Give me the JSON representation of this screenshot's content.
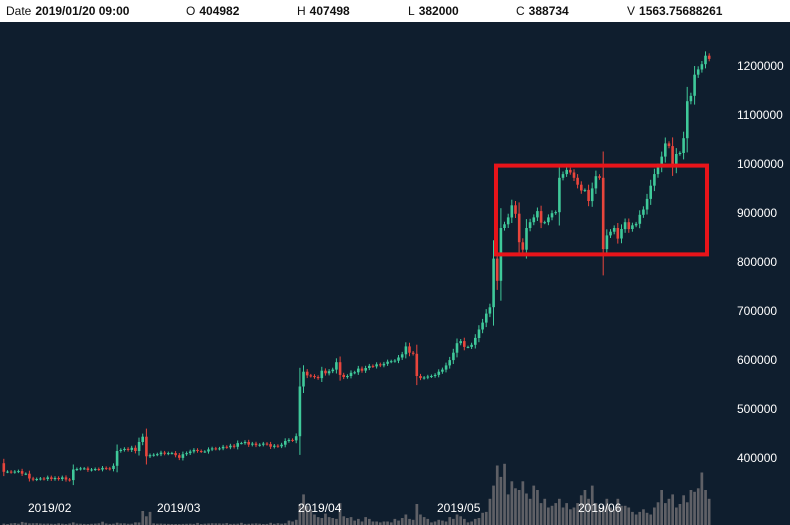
{
  "header": {
    "date_label": "Date",
    "date_value": "2019/01/20 09:00",
    "open_label": "O",
    "open_value": "404982",
    "high_label": "H",
    "high_value": "407498",
    "low_label": "L",
    "low_value": "382000",
    "close_label": "C",
    "close_value": "388734",
    "volume_label": "V",
    "volume_value": "1563.75688261"
  },
  "colors": {
    "background": "#0f1e2e",
    "up": "#3fc99a",
    "down": "#e8453c",
    "volume": "#5f6066",
    "highlight_box": "#e8141a"
  },
  "chart_data": {
    "type": "candlestick",
    "y_tick_labels": [
      "1200000",
      "1100000",
      "1000000",
      "900000",
      "800000",
      "700000",
      "600000",
      "500000",
      "400000"
    ],
    "ylim": [
      358000,
      1236000
    ],
    "x_tick_labels": [
      "2019/02",
      "2019/03",
      "2019/04",
      "2019/05",
      "2019/06"
    ],
    "highlight_range": [
      800000,
      968000
    ],
    "closes": [
      388734,
      389000,
      388000,
      389000,
      390000,
      385000,
      385000,
      376000,
      374000,
      375000,
      376000,
      375000,
      378000,
      375000,
      377000,
      375000,
      378000,
      374000,
      373000,
      393000,
      394000,
      395000,
      395000,
      392000,
      393000,
      394000,
      393000,
      396000,
      395000,
      394000,
      400000,
      428000,
      430000,
      432000,
      430000,
      434000,
      428000,
      445000,
      455000,
      418000,
      420000,
      421000,
      422000,
      425000,
      423000,
      424000,
      424000,
      420000,
      415000,
      422000,
      424000,
      427000,
      430000,
      428000,
      427000,
      427000,
      431000,
      433000,
      432000,
      433000,
      436000,
      435000,
      438000,
      436000,
      443000,
      443000,
      445000,
      440000,
      442000,
      439000,
      440000,
      442000,
      441000,
      436000,
      438000,
      437000,
      440000,
      447000,
      449000,
      448000,
      456000,
      550000,
      578000,
      571000,
      570000,
      568000,
      566000,
      580000,
      575000,
      579000,
      582000,
      596000,
      572000,
      568000,
      570000,
      576000,
      577000,
      584000,
      580000,
      585000,
      589000,
      588000,
      592000,
      590000,
      593000,
      597000,
      598000,
      599000,
      605000,
      611000,
      626000,
      614000,
      612000,
      570000,
      566000,
      567000,
      569000,
      570000,
      572000,
      578000,
      582000,
      590000,
      600000,
      614000,
      632000,
      636000,
      625000,
      625000,
      629000,
      642000,
      658000,
      671000,
      688000,
      700000,
      792000,
      750000,
      850000,
      857000,
      870000,
      893000,
      877000,
      823000,
      809000,
      850000,
      861000,
      870000,
      882000,
      860000,
      861000,
      870000,
      878000,
      880000,
      945000,
      952000,
      960000,
      955000,
      945000,
      932000,
      921000,
      922000,
      901000,
      925000,
      948000,
      945000,
      810000,
      836000,
      843000,
      850000,
      830000,
      848000,
      861000,
      848000,
      855000,
      858000,
      875000,
      885000,
      905000,
      930000,
      952000,
      965000,
      985000,
      1010000,
      1005000,
      965000,
      990000,
      992000,
      1020000,
      1090000,
      1100000,
      1140000,
      1150000,
      1160000,
      1176000,
      1170000
    ],
    "volume_scale": [
      0,
      120000
    ],
    "volumes": [
      1563,
      1200,
      1800,
      2200,
      1500,
      3500,
      2600,
      1800,
      2000,
      2100,
      1700,
      1500,
      1600,
      1400,
      1300,
      1900,
      1500,
      1100,
      1700,
      3000,
      1600,
      1500,
      1300,
      1200,
      1400,
      1600,
      2000,
      3800,
      1700,
      1300,
      1500,
      2600,
      1800,
      1800,
      1400,
      1500,
      3000,
      2900,
      16000,
      10000,
      15000,
      1800,
      1500,
      1600,
      1400,
      1300,
      1200,
      1100,
      1000,
      1300,
      1400,
      1500,
      1300,
      2400,
      1200,
      1500,
      1700,
      1900,
      1800,
      1700,
      1600,
      2200,
      1300,
      1400,
      1500,
      2500,
      1300,
      1400,
      1600,
      1800,
      1500,
      1200,
      1300,
      2500,
      1400,
      2100,
      1500,
      1900,
      5000,
      4000,
      6000,
      24000,
      35000,
      22000,
      18000,
      12000,
      9000,
      8000,
      13000,
      9000,
      8000,
      7000,
      25000,
      10000,
      8000,
      9000,
      5000,
      7000,
      4000,
      9000,
      7000,
      4000,
      4000,
      3000,
      4000,
      4000,
      3000,
      7000,
      5000,
      8000,
      12000,
      7000,
      6000,
      24000,
      12000,
      9000,
      7000,
      3000,
      4000,
      6000,
      5000,
      4000,
      9000,
      7000,
      12000,
      10000,
      7000,
      3000,
      4000,
      7000,
      8000,
      14000,
      15000,
      30000,
      45000,
      68000,
      55000,
      70000,
      35000,
      50000,
      42000,
      40000,
      50000,
      36000,
      30000,
      45000,
      40000,
      25000,
      30000,
      20000,
      22000,
      25000,
      30000,
      20000,
      25000,
      18000,
      20000,
      25000,
      34000,
      40000,
      30000,
      45000,
      25000,
      20000,
      22000,
      30000,
      20000,
      18000,
      30000,
      22000,
      22000,
      20000,
      15000,
      12000,
      15000,
      18000,
      14000,
      12000,
      20000,
      26000,
      40000,
      25000,
      30000,
      35000,
      20000,
      24000,
      34000,
      26000,
      40000,
      38000,
      42000,
      60000,
      40000,
      30000,
      12000
    ]
  }
}
